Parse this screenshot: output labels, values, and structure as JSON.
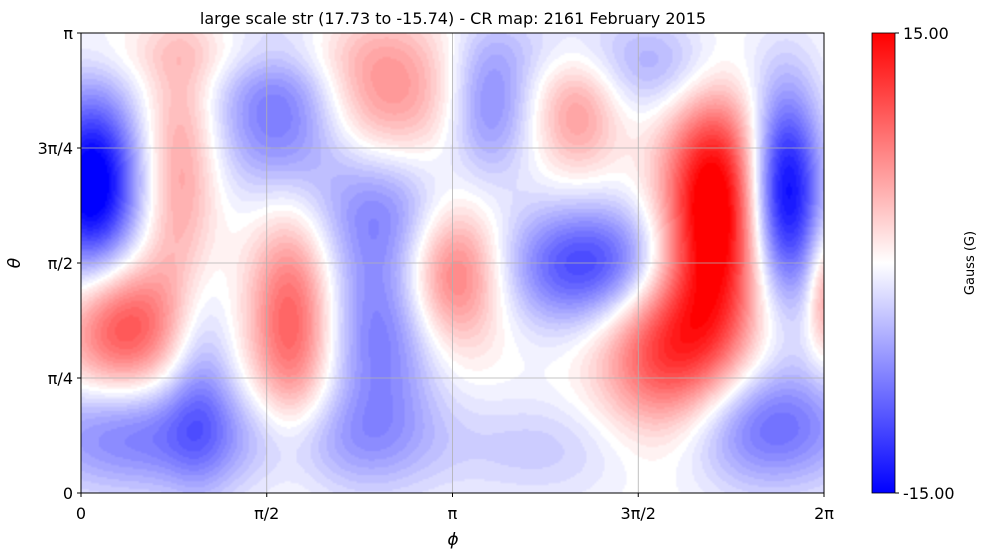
{
  "chart_data": {
    "type": "heatmap",
    "title": "large scale str (17.73 to -15.74) - CR map: 2161 February 2015",
    "xlabel": "ϕ",
    "ylabel": "θ",
    "xlim": [
      0,
      6.2832
    ],
    "ylim": [
      0,
      3.1416
    ],
    "x_ticks": [
      {
        "value": 0,
        "label": "0"
      },
      {
        "value": 1.5708,
        "label": "π/2"
      },
      {
        "value": 3.1416,
        "label": "π"
      },
      {
        "value": 4.7124,
        "label": "3π/2"
      },
      {
        "value": 6.2832,
        "label": "2π"
      }
    ],
    "y_ticks": [
      {
        "value": 0,
        "label": "0"
      },
      {
        "value": 0.7854,
        "label": "π/4"
      },
      {
        "value": 1.5708,
        "label": "π/2"
      },
      {
        "value": 2.3562,
        "label": "3π/4"
      },
      {
        "value": 3.1416,
        "label": "π"
      }
    ],
    "grid": true,
    "colormap": "bwr",
    "color_low": "#0000ff",
    "color_mid": "#ffffff",
    "color_high": "#ff0000",
    "vmin": -15,
    "vmax": 15,
    "colorbar": {
      "label": "Gauss (G)",
      "max_label": "15.00",
      "min_label": "-15.00"
    },
    "features": [
      {
        "x": 0.09,
        "y": 2.1,
        "value": -17,
        "sx": 0.28,
        "sy": 0.45
      },
      {
        "x": 0.35,
        "y": 1.13,
        "value": 11,
        "sx": 0.35,
        "sy": 0.33
      },
      {
        "x": 0.85,
        "y": 2.2,
        "value": 6,
        "sx": 0.22,
        "sy": 0.65
      },
      {
        "x": 1.78,
        "y": 1.15,
        "value": 10,
        "sx": 0.25,
        "sy": 0.55
      },
      {
        "x": 1.7,
        "y": 2.6,
        "value": -9,
        "sx": 0.4,
        "sy": 0.4
      },
      {
        "x": 1.0,
        "y": 0.8,
        "value": -5,
        "sx": 0.2,
        "sy": 0.55
      },
      {
        "x": 2.55,
        "y": 2.75,
        "value": 7,
        "sx": 0.45,
        "sy": 0.35
      },
      {
        "x": 2.55,
        "y": 1.95,
        "value": -5,
        "sx": 0.45,
        "sy": 0.3
      },
      {
        "x": 2.55,
        "y": 1.1,
        "value": -8,
        "sx": 0.35,
        "sy": 0.55
      },
      {
        "x": 3.15,
        "y": 1.5,
        "value": 10,
        "sx": 0.3,
        "sy": 0.35
      },
      {
        "x": 3.45,
        "y": 2.65,
        "value": -7,
        "sx": 0.25,
        "sy": 0.35
      },
      {
        "x": 4.2,
        "y": 2.6,
        "value": 6,
        "sx": 0.25,
        "sy": 0.3
      },
      {
        "x": 4.35,
        "y": 1.55,
        "value": -12,
        "sx": 0.55,
        "sy": 0.3
      },
      {
        "x": 5.35,
        "y": 1.9,
        "value": 18,
        "sx": 0.3,
        "sy": 0.6
      },
      {
        "x": 4.95,
        "y": 1.0,
        "value": 12,
        "sx": 0.4,
        "sy": 0.45
      },
      {
        "x": 5.95,
        "y": 2.05,
        "value": -16,
        "sx": 0.22,
        "sy": 0.5
      },
      {
        "x": 6.28,
        "y": 1.35,
        "value": 6,
        "sx": 0.1,
        "sy": 0.3
      },
      {
        "x": 5.8,
        "y": 0.45,
        "value": -9,
        "sx": 0.55,
        "sy": 0.3
      },
      {
        "x": 0.5,
        "y": 0.4,
        "value": -8,
        "sx": 0.7,
        "sy": 0.28
      },
      {
        "x": 2.2,
        "y": 0.35,
        "value": -4,
        "sx": 0.6,
        "sy": 0.25
      },
      {
        "x": 3.9,
        "y": 0.3,
        "value": -3,
        "sx": 0.6,
        "sy": 0.25
      },
      {
        "x": 5.0,
        "y": 2.9,
        "value": -5,
        "sx": 0.45,
        "sy": 0.25
      },
      {
        "x": 4.0,
        "y": 3.05,
        "value": -2,
        "sx": 0.6,
        "sy": 0.2
      },
      {
        "x": 1.2,
        "y": 3.0,
        "value": 2,
        "sx": 0.9,
        "sy": 0.15
      }
    ]
  }
}
